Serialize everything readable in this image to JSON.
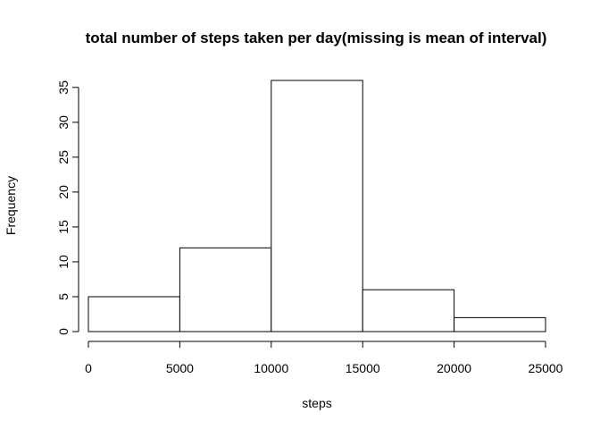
{
  "chart_data": {
    "type": "bar",
    "title": "total number of steps taken per day(missing is mean of interval)",
    "xlabel": "steps",
    "ylabel": "Frequency",
    "bins": [
      {
        "start": 0,
        "end": 5000,
        "value": 5
      },
      {
        "start": 5000,
        "end": 10000,
        "value": 12
      },
      {
        "start": 10000,
        "end": 15000,
        "value": 36
      },
      {
        "start": 15000,
        "end": 20000,
        "value": 6
      },
      {
        "start": 20000,
        "end": 25000,
        "value": 2
      }
    ],
    "x_ticks": [
      "0",
      "5000",
      "10000",
      "15000",
      "20000",
      "25000"
    ],
    "y_ticks": [
      "0",
      "5",
      "10",
      "15",
      "20",
      "25",
      "30",
      "35"
    ],
    "xlim": [
      0,
      25000
    ],
    "ylim": [
      0,
      36
    ],
    "grid": false,
    "legend": "none",
    "bar_color": "#ffffff",
    "edge_color": "#000000"
  }
}
